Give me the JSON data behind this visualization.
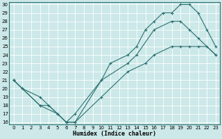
{
  "bg_color": "#cce8e8",
  "line_color": "#2a7070",
  "grid_color": "#ffffff",
  "xlabel": "Humidex (Indice chaleur)",
  "ylim": [
    16,
    30
  ],
  "xlim": [
    0,
    23
  ],
  "yticks": [
    16,
    17,
    18,
    19,
    20,
    21,
    22,
    23,
    24,
    25,
    26,
    27,
    28,
    29,
    30
  ],
  "xticks": [
    0,
    1,
    2,
    3,
    4,
    5,
    6,
    7,
    8,
    9,
    10,
    11,
    12,
    13,
    14,
    15,
    16,
    17,
    18,
    19,
    20,
    21,
    22,
    23
  ],
  "curve1_x": [
    0,
    1,
    3,
    4,
    5,
    6,
    7,
    10,
    11,
    13,
    14,
    15,
    16,
    17,
    18,
    19,
    20,
    21,
    22,
    23
  ],
  "curve1_y": [
    21,
    20,
    18,
    18,
    17,
    16,
    16,
    21,
    23,
    24,
    25,
    27,
    28,
    29,
    29,
    30,
    30,
    29,
    27,
    25
  ],
  "curve2_x": [
    0,
    3,
    5,
    6,
    7,
    10,
    13,
    14,
    16,
    18,
    19,
    20,
    21,
    23
  ],
  "curve2_y": [
    21,
    18,
    17,
    16,
    17,
    21,
    23,
    24,
    27,
    28,
    28,
    27,
    26,
    24
  ],
  "curve3_x": [
    0,
    1,
    3,
    6,
    7,
    10,
    13,
    15,
    16,
    18,
    19,
    20,
    21,
    22,
    23
  ],
  "curve3_y": [
    21,
    20,
    19,
    16,
    16,
    19,
    22,
    23,
    24,
    25,
    25,
    25,
    25,
    25,
    24
  ]
}
